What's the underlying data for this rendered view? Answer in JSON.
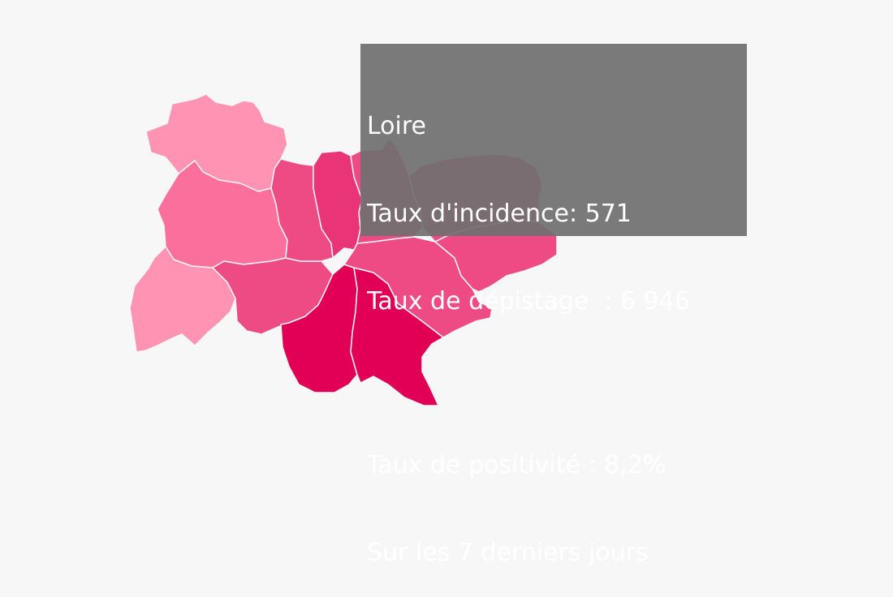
{
  "map": {
    "departments": [
      {
        "id": "allier",
        "level": 1
      },
      {
        "id": "puy-de-dome",
        "level": 2
      },
      {
        "id": "cantal",
        "level": 1
      },
      {
        "id": "haute-loire",
        "level": 3
      },
      {
        "id": "loire",
        "level": 3
      },
      {
        "id": "rhone",
        "level": 4
      },
      {
        "id": "ardeche",
        "level": 5
      },
      {
        "id": "drome",
        "level": 5
      },
      {
        "id": "isere",
        "level": 3
      },
      {
        "id": "ain",
        "level": 3
      },
      {
        "id": "savoie",
        "level": 3
      },
      {
        "id": "haute-savoie",
        "level": 3
      }
    ],
    "colors": {
      "1": "#ff93b4",
      "2": "#fa6f9b",
      "3": "#ee4b85",
      "4": "#e93477",
      "5": "#e20056"
    }
  },
  "tooltip": {
    "name": "Loire",
    "incidence": "Taux d'incidence: 571",
    "depistage": "Taux de dépistage  : 6 946",
    "positivite": "Taux de positivité : 8,2%",
    "period": "Sur les 7 derniers jours"
  }
}
